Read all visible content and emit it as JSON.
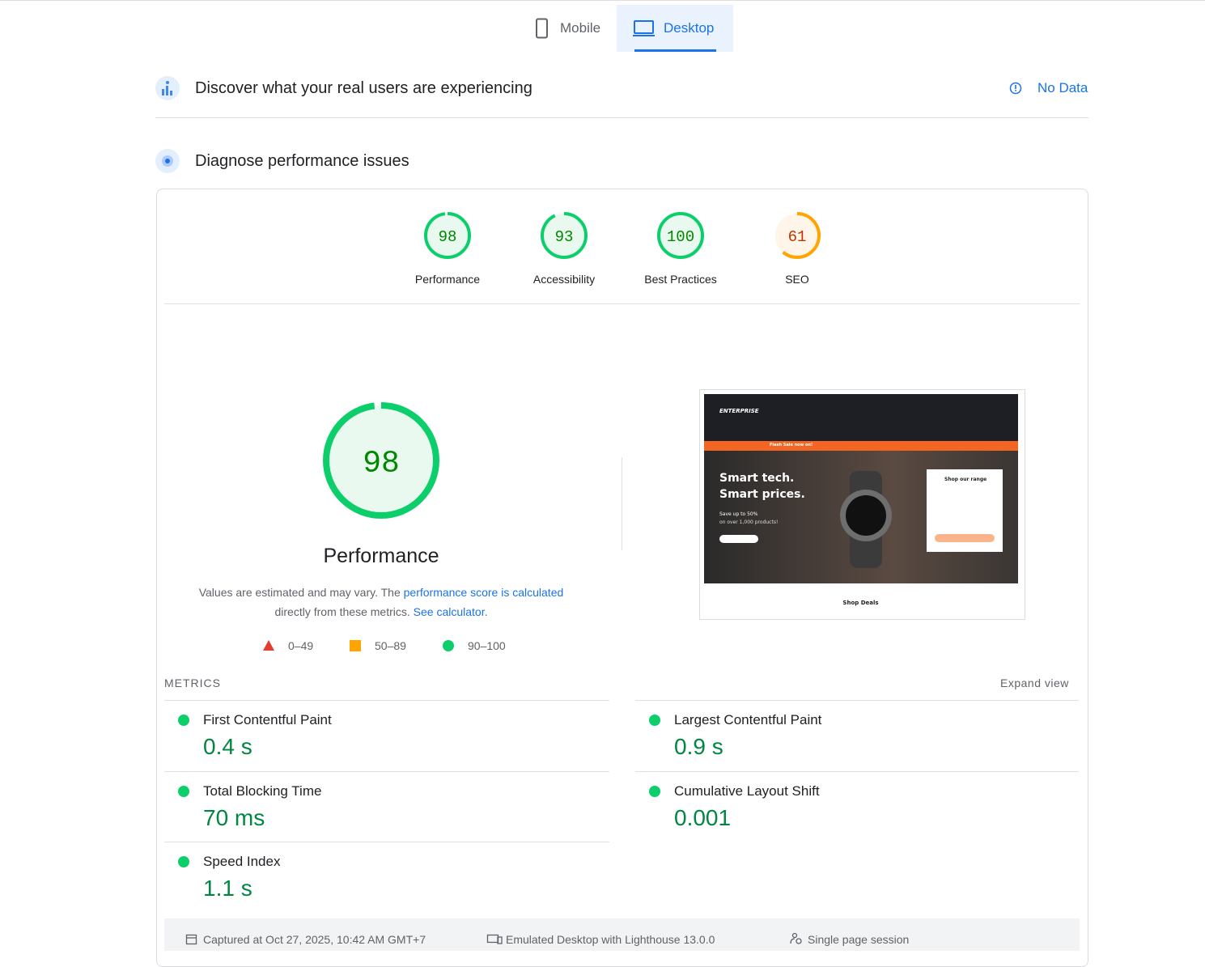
{
  "tabs": [
    {
      "label": "Mobile",
      "active": false
    },
    {
      "label": "Desktop",
      "active": true
    }
  ],
  "field_data": {
    "title": "Discover what your real users are experiencing",
    "status": "No Data"
  },
  "diagnose": {
    "title": "Diagnose performance issues"
  },
  "categories": [
    {
      "label": "Performance",
      "score": 98,
      "color": "#0cce6b",
      "fill": "#e9f9ef",
      "text_color": "#008800"
    },
    {
      "label": "Accessibility",
      "score": 93,
      "color": "#0cce6b",
      "fill": "#e9f9ef",
      "text_color": "#008800"
    },
    {
      "label": "Best Practices",
      "score": 100,
      "color": "#0cce6b",
      "fill": "#e9f9ef",
      "text_color": "#008800"
    },
    {
      "label": "SEO",
      "score": 61,
      "color": "#ffa400",
      "fill": "#fff5e8",
      "text_color": "#c33300"
    }
  ],
  "performance": {
    "score": 98,
    "label": "Performance",
    "color": "#0cce6b",
    "fill": "#e9f9ef",
    "text_color": "#008800",
    "note_start": "Values are estimated and may vary. The",
    "note_link": "performance score is calculated",
    "note_mid": "directly from these metrics.",
    "note_link2": "See calculator.",
    "legend": [
      "0–49",
      "50–89",
      "90–100"
    ]
  },
  "screenshot": {
    "brand": "ENTERPRISE",
    "sale": "Flash Sale now on!",
    "headline1": "Smart tech.",
    "headline2": "Smart prices.",
    "promo1": "Save up to 50%",
    "promo2": "on over 1,000 products!",
    "panel": "Shop our range",
    "footer": "Shop Deals"
  },
  "metrics": {
    "heading": "METRICS",
    "expand": "Expand view",
    "items": [
      {
        "name": "First Contentful Paint",
        "value": "0.4 s",
        "color": "#0cce6b"
      },
      {
        "name": "Largest Contentful Paint",
        "value": "0.9 s",
        "color": "#0cce6b"
      },
      {
        "name": "Total Blocking Time",
        "value": "70 ms",
        "color": "#0cce6b"
      },
      {
        "name": "Cumulative Layout Shift",
        "value": "0.001",
        "color": "#0cce6b"
      },
      {
        "name": "Speed Index",
        "value": "1.1 s",
        "color": "#0cce6b"
      }
    ]
  },
  "footer": [
    "Captured at Oct 27, 2025, 10:42 AM GMT+7",
    "Emulated Desktop with Lighthouse 13.0.0",
    "Single page session"
  ]
}
